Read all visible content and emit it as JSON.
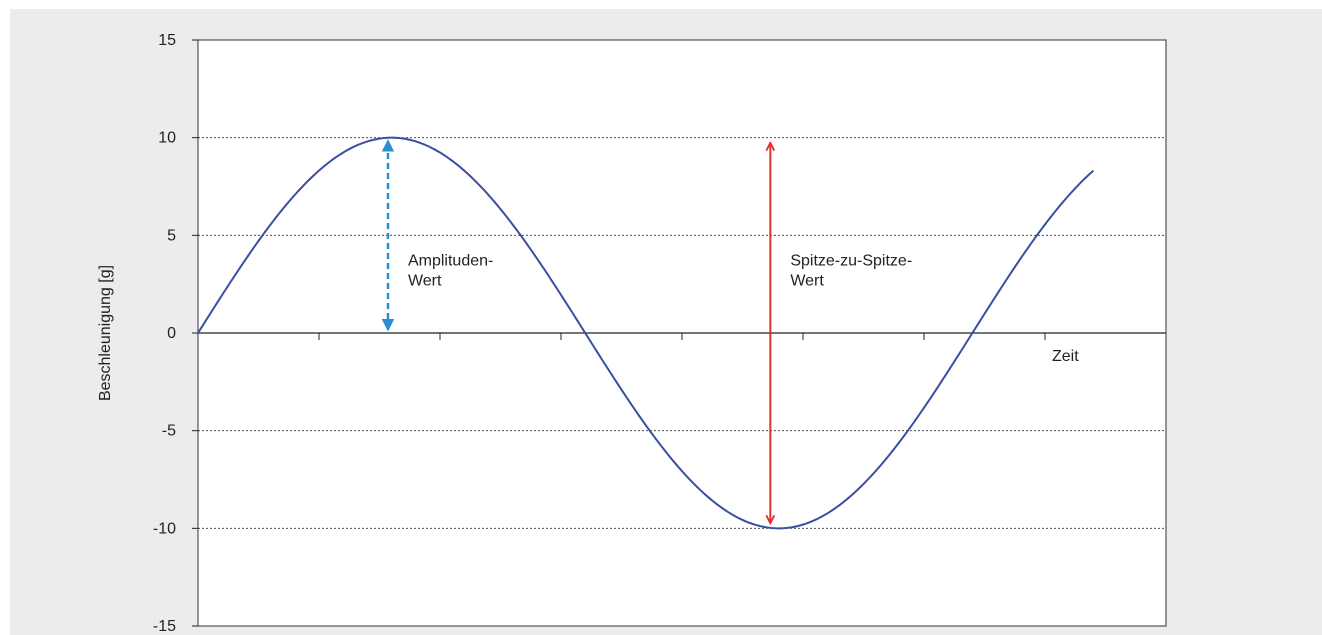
{
  "chart_data": {
    "type": "line",
    "title": "",
    "xlabel": "Zeit",
    "ylabel": "Beschleunigung [g]",
    "ylim": [
      -15,
      15
    ],
    "yticks": [
      15,
      10,
      5,
      0,
      -5,
      -10,
      -15
    ],
    "ytick_labels": [
      "15",
      "10",
      "5",
      "0",
      "-5",
      "-10",
      "-15"
    ],
    "xlim": [
      0,
      8
    ],
    "xticks": [
      1,
      2,
      3,
      4,
      5,
      6,
      7
    ],
    "gridlines_y": [
      10,
      5,
      -5,
      -10
    ],
    "grid": "dotted horizontal",
    "series": [
      {
        "color": "#3a4fa0",
        "function": "sine",
        "amplitude": 10,
        "period": 6.4,
        "x_end": 7.4
      }
    ],
    "annotations": [
      {
        "line1": "Amplituden-",
        "line2": "Wert",
        "color": "#2a8fd0",
        "style": "dashed",
        "x": 1.57,
        "y_from": 0,
        "y_to": 10
      },
      {
        "line1": "Spitze-zu-Spitze-",
        "line2": "Wert",
        "color": "#e03030",
        "style": "solid",
        "x": 4.73,
        "y_from": -10,
        "y_to": 10
      }
    ]
  }
}
